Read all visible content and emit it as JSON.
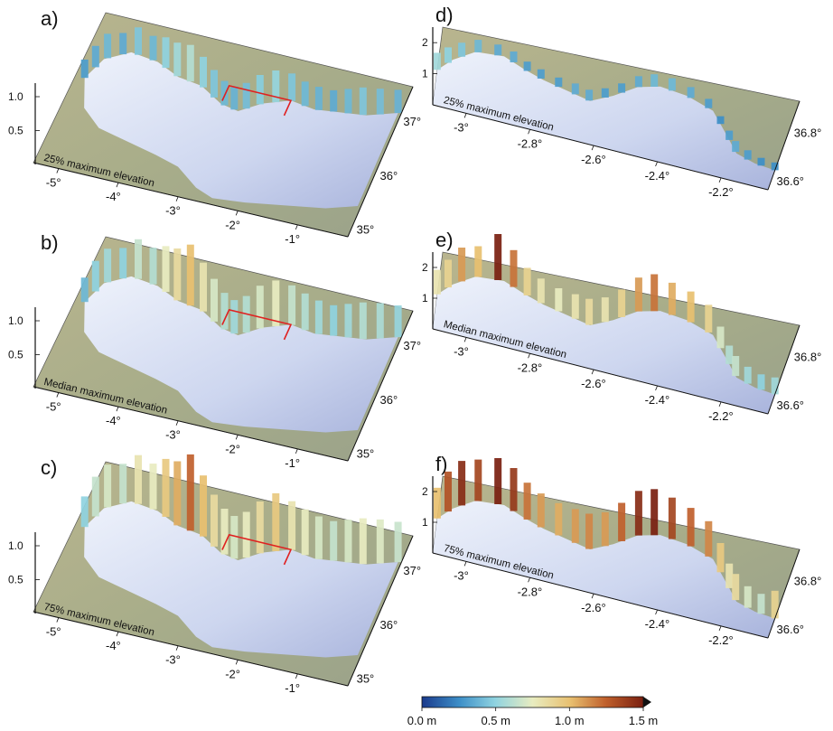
{
  "chart_data": [
    {
      "panel": "a)",
      "type": "3d-surface",
      "region": "overview",
      "annotation": "25% maximum elevation",
      "x_ticks": [
        "-5°",
        "-4°",
        "-3°",
        "-2°",
        "-1°"
      ],
      "y_ticks": [
        "35°",
        "36°",
        "37°"
      ],
      "z_ticks": [
        "0.5",
        "1.0"
      ],
      "coast_bar_heights_m": [
        0.3,
        0.35,
        0.4,
        0.35,
        0.45,
        0.4,
        0.5,
        0.55,
        0.6,
        0.5,
        0.45,
        0.4,
        0.38,
        0.42,
        0.48,
        0.52,
        0.45,
        0.4,
        0.38,
        0.35,
        0.4,
        0.45,
        0.42,
        0.38
      ]
    },
    {
      "panel": "b)",
      "type": "3d-surface",
      "region": "overview",
      "annotation": "Median maximum elevation",
      "x_ticks": [
        "-5°",
        "-4°",
        "-3°",
        "-2°",
        "-1°"
      ],
      "y_ticks": [
        "35°",
        "36°",
        "37°"
      ],
      "z_ticks": [
        "0.5",
        "1.0"
      ],
      "coast_bar_heights_m": [
        0.4,
        0.5,
        0.55,
        0.5,
        0.65,
        0.6,
        0.75,
        0.85,
        1.0,
        0.8,
        0.7,
        0.6,
        0.55,
        0.6,
        0.7,
        0.75,
        0.65,
        0.6,
        0.55,
        0.5,
        0.55,
        0.6,
        0.58,
        0.52
      ]
    },
    {
      "panel": "c)",
      "type": "3d-surface",
      "region": "overview",
      "annotation": "75% maximum elevation",
      "x_ticks": [
        "-5°",
        "-4°",
        "-3°",
        "-2°",
        "-1°"
      ],
      "y_ticks": [
        "35°",
        "36°",
        "37°"
      ],
      "z_ticks": [
        "0.5",
        "1.0"
      ],
      "coast_bar_heights_m": [
        0.5,
        0.65,
        0.7,
        0.65,
        0.8,
        0.75,
        0.95,
        1.05,
        1.25,
        1.0,
        0.85,
        0.75,
        0.7,
        0.75,
        0.85,
        0.95,
        0.8,
        0.75,
        0.7,
        0.65,
        0.7,
        0.75,
        0.72,
        0.66
      ]
    },
    {
      "panel": "d)",
      "type": "3d-surface",
      "region": "zoom",
      "annotation": "25% maximum elevation",
      "x_ticks": [
        "-3°",
        "-2.8°",
        "-2.6°",
        "-2.4°",
        "-2.2°"
      ],
      "y_ticks": [
        "36.6°",
        "36.8°"
      ],
      "z_ticks": [
        "1",
        "2"
      ],
      "coast_bar_heights_m": [
        0.55,
        0.5,
        0.45,
        0.4,
        0.35,
        0.35,
        0.3,
        0.3,
        0.3,
        0.35,
        0.35,
        0.3,
        0.3,
        0.35,
        0.4,
        0.4,
        0.35,
        0.3,
        0.25,
        0.3,
        0.35,
        0.3,
        0.25,
        0.25
      ]
    },
    {
      "panel": "e)",
      "type": "3d-surface",
      "region": "zoom",
      "annotation": "Median maximum elevation",
      "x_ticks": [
        "-3°",
        "-2.8°",
        "-2.6°",
        "-2.4°",
        "-2.2°"
      ],
      "y_ticks": [
        "36.6°",
        "36.8°"
      ],
      "z_ticks": [
        "1",
        "2"
      ],
      "coast_bar_heights_m": [
        0.8,
        0.9,
        1.1,
        1.0,
        1.5,
        1.2,
        0.9,
        0.8,
        0.75,
        0.8,
        0.85,
        0.8,
        0.9,
        1.1,
        1.2,
        1.05,
        1.0,
        0.9,
        0.7,
        0.6,
        0.65,
        0.55,
        0.5,
        0.55
      ]
    },
    {
      "panel": "f)",
      "type": "3d-surface",
      "region": "zoom",
      "annotation": "75% maximum elevation",
      "x_ticks": [
        "-3°",
        "-2.8°",
        "-2.6°",
        "-2.4°",
        "-2.2°"
      ],
      "y_ticks": [
        "36.6°",
        "36.8°"
      ],
      "z_ticks": [
        "1",
        "2"
      ],
      "coast_bar_heights_m": [
        1.0,
        1.3,
        1.45,
        1.35,
        1.5,
        1.4,
        1.2,
        1.1,
        1.05,
        1.1,
        1.15,
        1.1,
        1.25,
        1.45,
        1.5,
        1.35,
        1.25,
        1.15,
        0.95,
        0.8,
        0.85,
        0.7,
        0.65,
        0.9
      ]
    }
  ],
  "colorbar": {
    "labels": [
      "0.0 m",
      "0.5 m",
      "1.0 m",
      "1.5 m"
    ],
    "range": [
      0,
      1.5
    ],
    "colors": [
      "#1a3a8c",
      "#3d8fc8",
      "#8fd3e0",
      "#e8ecc0",
      "#e8c070",
      "#c0602c",
      "#7a1f10"
    ]
  }
}
